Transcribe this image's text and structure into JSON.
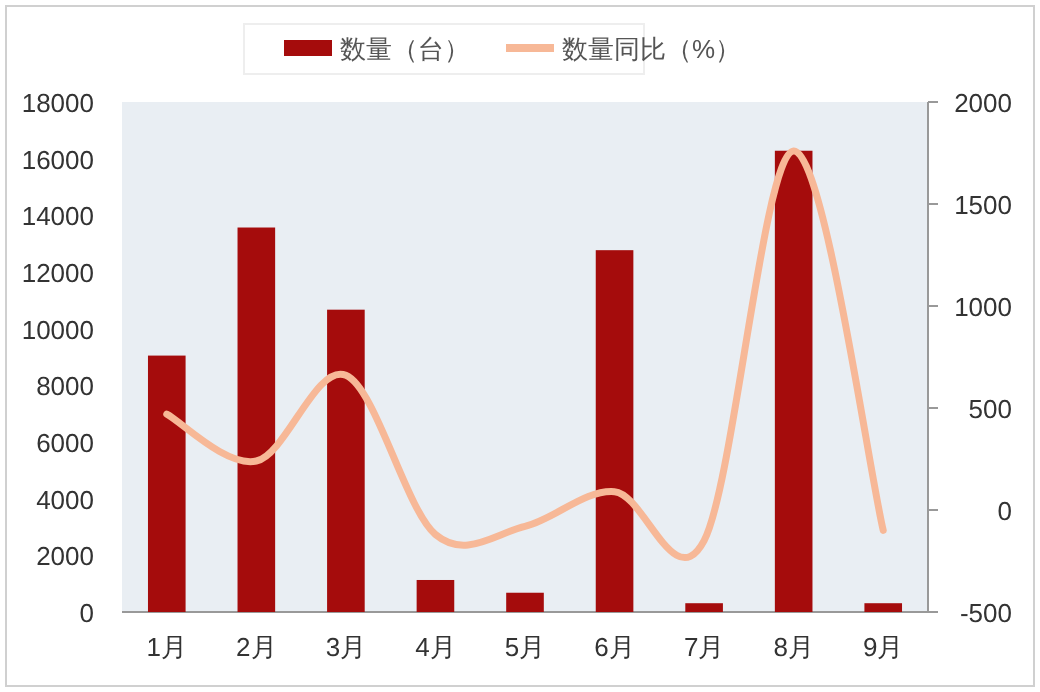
{
  "chart_data": {
    "type": "bar",
    "categories": [
      "1月",
      "2月",
      "3月",
      "4月",
      "5月",
      "6月",
      "7月",
      "8月",
      "9月"
    ],
    "series": [
      {
        "name": "数量（台）",
        "color": "#a50c0c",
        "values": [
          9050,
          13570,
          10670,
          1130,
          680,
          12770,
          310,
          16280,
          310
        ]
      },
      {
        "name": "数量同比（%）",
        "type": "line",
        "axis": "y2",
        "color": "#f7b897",
        "values": [
          470,
          240,
          660,
          -120,
          -80,
          90,
          -150,
          1760,
          -100
        ]
      }
    ],
    "ylim": [
      0,
      18000
    ],
    "yticks": [
      0,
      2000,
      4000,
      6000,
      8000,
      10000,
      12000,
      14000,
      16000,
      18000
    ],
    "y2lim": [
      -500,
      2000
    ],
    "y2ticks": [
      -500,
      0,
      500,
      1000,
      1500,
      2000
    ],
    "legend": "top",
    "grid": false,
    "marker": "none",
    "line_style": "solid"
  }
}
